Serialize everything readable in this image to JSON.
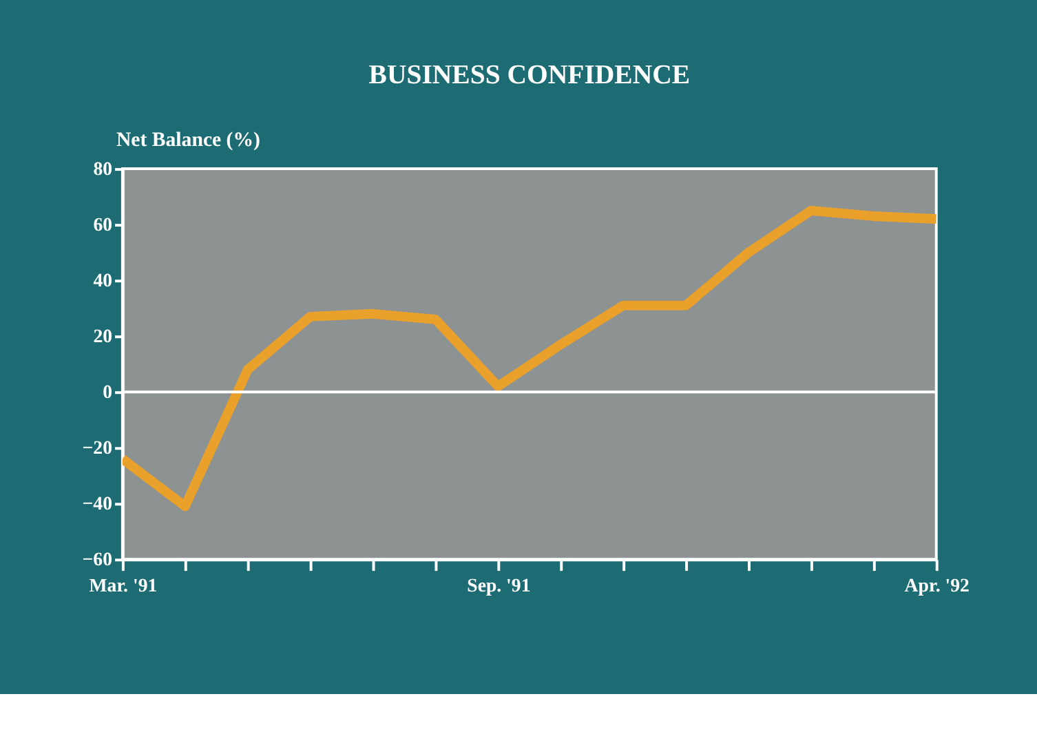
{
  "chart_data": {
    "type": "line",
    "title": "BUSINESS CONFIDENCE",
    "ylabel": "Net Balance (%)",
    "categories": [
      "Mar. '91",
      null,
      null,
      null,
      null,
      null,
      "Sep. '91",
      null,
      null,
      null,
      null,
      null,
      null,
      "Apr. '92"
    ],
    "series": [
      {
        "color": "#e9a12b",
        "values": [
          -24,
          -41,
          8,
          27,
          28,
          26,
          2,
          17,
          31,
          31,
          50,
          65,
          63,
          62
        ]
      }
    ],
    "ylim": [
      -60,
      80
    ],
    "yticks": [
      -60,
      -40,
      -20,
      0,
      20,
      40,
      60,
      80
    ],
    "ref_lines": [
      {
        "axis": "y",
        "value": 0,
        "color": "#ffffff"
      }
    ],
    "grid": false,
    "marker": "none",
    "line_style": "solid"
  }
}
